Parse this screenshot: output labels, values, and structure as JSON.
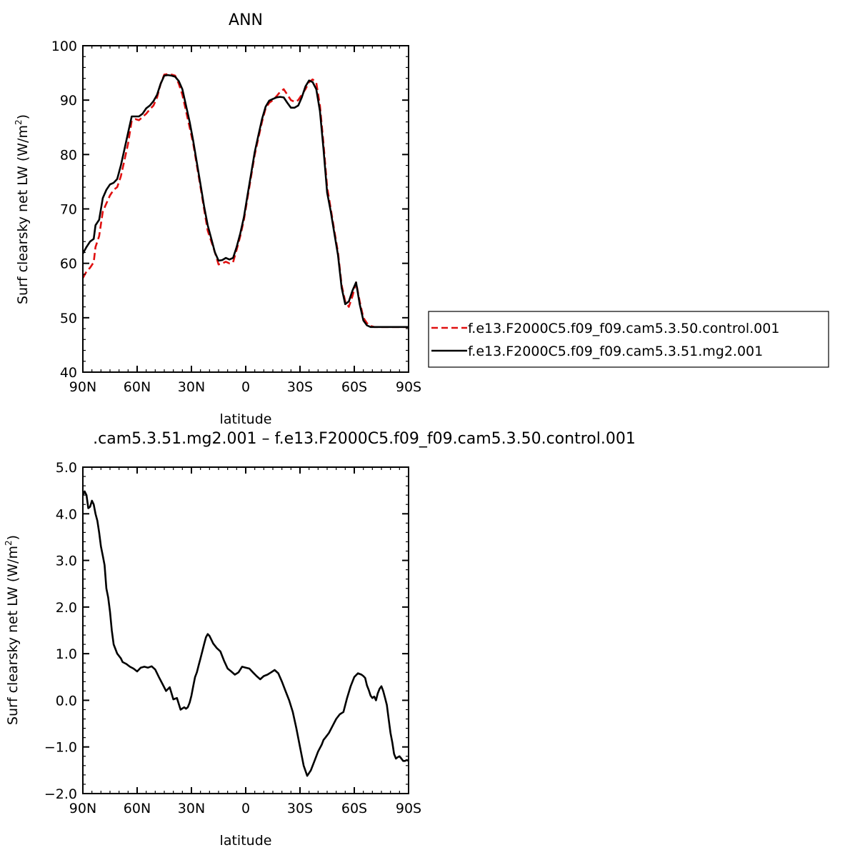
{
  "chart_data": [
    {
      "type": "line",
      "title": "ANN",
      "xlabel": "latitude",
      "ylabel": "Surf clearsky net LW (W/m²)",
      "ylabel_parts": {
        "main": "Surf clearsky net LW (W/m",
        "sup": "2",
        "end": ")"
      },
      "x_direction": "90N to 90S",
      "xlim": [
        90,
        -90
      ],
      "ylim": [
        40,
        100
      ],
      "xticks": [
        {
          "value": 90,
          "label": "90N"
        },
        {
          "value": 60,
          "label": "60N"
        },
        {
          "value": 30,
          "label": "30N"
        },
        {
          "value": 0,
          "label": "0"
        },
        {
          "value": -30,
          "label": "30S"
        },
        {
          "value": -60,
          "label": "60S"
        },
        {
          "value": -90,
          "label": "90S"
        }
      ],
      "yticks": [
        {
          "value": 40,
          "label": "40"
        },
        {
          "value": 50,
          "label": "50"
        },
        {
          "value": 60,
          "label": "60"
        },
        {
          "value": 70,
          "label": "70"
        },
        {
          "value": 80,
          "label": "80"
        },
        {
          "value": 90,
          "label": "90"
        },
        {
          "value": 100,
          "label": "100"
        }
      ],
      "legend": "right",
      "series": [
        {
          "name": "f.e13.F2000C5.f09_f09.cam5.3.50.control.001",
          "color": "#e01010",
          "dash": "dashed",
          "x": [
            90,
            88,
            86,
            84,
            83,
            81,
            79,
            77,
            75,
            73,
            71,
            69,
            67,
            65,
            63,
            61,
            59,
            57,
            55,
            53,
            51,
            49,
            47,
            45,
            43,
            41,
            39,
            37,
            35,
            33,
            31,
            29,
            27,
            25,
            23,
            21,
            19,
            17,
            15,
            13,
            11,
            9,
            7,
            5,
            3,
            1,
            -1,
            -3,
            -5,
            -7,
            -9,
            -11,
            -13,
            -15,
            -17,
            -19,
            -21,
            -23,
            -25,
            -27,
            -29,
            -31,
            -33,
            -35,
            -37,
            -39,
            -41,
            -43,
            -45,
            -47,
            -49,
            -51,
            -53,
            -55,
            -57,
            -59,
            -61,
            -63,
            -65,
            -67,
            -69,
            -71,
            -73,
            -75,
            -77,
            -79,
            -81,
            -83,
            -85,
            -87,
            -89,
            -90
          ],
          "y": [
            57.3,
            58.5,
            59.2,
            60.2,
            63.0,
            65.0,
            69.5,
            71.0,
            72.5,
            73.5,
            74.0,
            76.0,
            79.0,
            82.0,
            86.2,
            86.5,
            86.3,
            86.9,
            87.5,
            88.3,
            89.0,
            90.5,
            93.0,
            94.7,
            94.8,
            94.7,
            94.5,
            93.0,
            91.0,
            88.0,
            85.0,
            82.0,
            78.0,
            74.0,
            70.0,
            66.0,
            64.0,
            62.0,
            59.8,
            60.0,
            60.3,
            60.0,
            60.2,
            62.5,
            65.0,
            68.0,
            72.0,
            76.0,
            80.0,
            83.0,
            86.0,
            88.5,
            89.5,
            90.0,
            90.7,
            91.5,
            92.0,
            91.0,
            90.0,
            89.7,
            90.0,
            91.0,
            92.0,
            93.3,
            93.8,
            93.2,
            89.0,
            82.0,
            74.0,
            70.0,
            66.0,
            62.0,
            56.0,
            53.0,
            52.0,
            54.0,
            56.5,
            53.0,
            50.0,
            49.0,
            48.5,
            48.3,
            48.3,
            48.3,
            48.3,
            48.3,
            48.3,
            48.3,
            48.3,
            48.3,
            48.3,
            48.3
          ]
        },
        {
          "name": "f.e13.F2000C5.f09_f09.cam5.3.51.mg2.001",
          "color": "#000000",
          "dash": "solid",
          "x": [
            90,
            88,
            86,
            84,
            83,
            81,
            79,
            77,
            75,
            73,
            71,
            69,
            67,
            65,
            63,
            61,
            59,
            57,
            55,
            53,
            51,
            49,
            47,
            45,
            43,
            41,
            39,
            37,
            35,
            33,
            31,
            29,
            27,
            25,
            23,
            21,
            19,
            17,
            15,
            13,
            11,
            9,
            7,
            5,
            3,
            1,
            -1,
            -3,
            -5,
            -7,
            -9,
            -11,
            -13,
            -15,
            -17,
            -19,
            -21,
            -23,
            -25,
            -27,
            -29,
            -31,
            -33,
            -35,
            -37,
            -39,
            -41,
            -43,
            -45,
            -47,
            -49,
            -51,
            -53,
            -55,
            -57,
            -59,
            -61,
            -63,
            -65,
            -67,
            -69,
            -71,
            -73,
            -75,
            -77,
            -79,
            -81,
            -83,
            -85,
            -87,
            -89,
            -90
          ],
          "y": [
            61.8,
            63.0,
            64.0,
            64.5,
            67.0,
            68.0,
            72.0,
            73.5,
            74.5,
            74.8,
            75.5,
            78.0,
            81.0,
            84.0,
            87.0,
            87.0,
            87.0,
            87.5,
            88.5,
            89.0,
            89.8,
            91.0,
            93.0,
            94.5,
            94.6,
            94.5,
            94.3,
            93.5,
            92.0,
            89.0,
            86.0,
            82.5,
            78.5,
            74.5,
            70.5,
            67.0,
            64.5,
            62.0,
            60.5,
            60.6,
            61.0,
            60.7,
            61.0,
            63.0,
            65.5,
            68.5,
            72.5,
            76.5,
            80.5,
            83.5,
            86.5,
            88.8,
            89.9,
            90.2,
            90.5,
            90.6,
            90.5,
            89.5,
            88.6,
            88.6,
            89.0,
            90.5,
            92.5,
            93.6,
            93.3,
            92.0,
            88.0,
            81.0,
            73.0,
            69.5,
            65.5,
            61.5,
            55.5,
            52.5,
            53.0,
            55.0,
            56.5,
            52.5,
            49.5,
            48.6,
            48.3,
            48.3,
            48.3,
            48.3,
            48.3,
            48.3,
            48.3,
            48.3,
            48.3,
            48.3,
            48.3,
            48.3
          ]
        }
      ]
    },
    {
      "type": "line",
      "title": ".cam5.3.51.mg2.001 – f.e13.F2000C5.f09_f09.cam5.3.50.control.001",
      "xlabel": "latitude",
      "ylabel": "Surf clearsky net LW (W/m²)",
      "ylabel_parts": {
        "main": "Surf clearsky net LW (W/m",
        "sup": "2",
        "end": ")"
      },
      "x_direction": "90N to 90S",
      "xlim": [
        90,
        -90
      ],
      "ylim": [
        -2.0,
        5.0
      ],
      "xticks": [
        {
          "value": 90,
          "label": "90N"
        },
        {
          "value": 60,
          "label": "60N"
        },
        {
          "value": 30,
          "label": "30N"
        },
        {
          "value": 0,
          "label": "0"
        },
        {
          "value": -30,
          "label": "30S"
        },
        {
          "value": -60,
          "label": "60S"
        },
        {
          "value": -90,
          "label": "90S"
        }
      ],
      "yticks": [
        {
          "value": -2.0,
          "label": "−2.0"
        },
        {
          "value": -1.0,
          "label": "−1.0"
        },
        {
          "value": 0.0,
          "label": "0.0"
        },
        {
          "value": 1.0,
          "label": "1.0"
        },
        {
          "value": 2.0,
          "label": "2.0"
        },
        {
          "value": 3.0,
          "label": "3.0"
        },
        {
          "value": 4.0,
          "label": "4.0"
        },
        {
          "value": 5.0,
          "label": "5.0"
        }
      ],
      "series": [
        {
          "color": "#000000",
          "dash": "solid",
          "x": [
            90,
            89,
            88,
            87,
            86,
            85,
            84,
            83,
            82,
            81,
            80,
            79,
            78,
            77,
            76,
            75,
            74,
            73,
            72,
            71,
            70,
            69,
            68,
            66,
            64,
            62,
            60,
            58,
            56,
            54,
            52,
            50,
            48,
            46,
            44,
            42,
            40,
            38,
            36,
            34,
            33,
            32,
            31,
            30,
            29,
            28,
            27,
            26,
            25,
            24,
            23,
            22,
            21,
            20,
            19,
            18,
            16,
            14,
            12,
            10,
            8,
            6,
            4,
            2,
            0,
            -2,
            -4,
            -6,
            -8,
            -10,
            -12,
            -14,
            -16,
            -18,
            -20,
            -22,
            -24,
            -26,
            -28,
            -30,
            -32,
            -34,
            -36,
            -38,
            -40,
            -42,
            -43,
            -44,
            -46,
            -48,
            -50,
            -52,
            -54,
            -56,
            -58,
            -60,
            -62,
            -64,
            -65,
            -66,
            -67,
            -68,
            -69,
            -70,
            -71,
            -72,
            -73,
            -74,
            -75,
            -76,
            -77,
            -78,
            -79,
            -80,
            -81,
            -82,
            -83,
            -84,
            -85,
            -86,
            -87,
            -88,
            -89,
            -90
          ],
          "y": [
            4.4,
            4.48,
            4.4,
            4.12,
            4.15,
            4.28,
            4.2,
            4.0,
            3.85,
            3.6,
            3.3,
            3.1,
            2.9,
            2.4,
            2.2,
            1.9,
            1.5,
            1.2,
            1.1,
            1.0,
            0.95,
            0.9,
            0.82,
            0.78,
            0.72,
            0.68,
            0.62,
            0.7,
            0.72,
            0.7,
            0.73,
            0.66,
            0.5,
            0.35,
            0.2,
            0.28,
            0.02,
            0.05,
            -0.2,
            -0.15,
            -0.18,
            -0.15,
            -0.05,
            0.1,
            0.3,
            0.5,
            0.6,
            0.75,
            0.9,
            1.05,
            1.2,
            1.35,
            1.42,
            1.38,
            1.3,
            1.22,
            1.12,
            1.05,
            0.85,
            0.68,
            0.62,
            0.55,
            0.6,
            0.72,
            0.7,
            0.68,
            0.6,
            0.52,
            0.45,
            0.52,
            0.55,
            0.6,
            0.65,
            0.58,
            0.4,
            0.2,
            0.0,
            -0.25,
            -0.6,
            -1.0,
            -1.4,
            -1.62,
            -1.5,
            -1.3,
            -1.1,
            -0.95,
            -0.85,
            -0.8,
            -0.7,
            -0.55,
            -0.4,
            -0.3,
            -0.25,
            0.05,
            0.3,
            0.5,
            0.58,
            0.55,
            0.52,
            0.48,
            0.32,
            0.22,
            0.1,
            0.05,
            0.08,
            0.0,
            0.15,
            0.25,
            0.3,
            0.2,
            0.05,
            -0.1,
            -0.4,
            -0.7,
            -0.9,
            -1.15,
            -1.25,
            -1.22,
            -1.2,
            -1.25,
            -1.3,
            -1.3,
            -1.28,
            -1.3
          ]
        }
      ]
    }
  ]
}
